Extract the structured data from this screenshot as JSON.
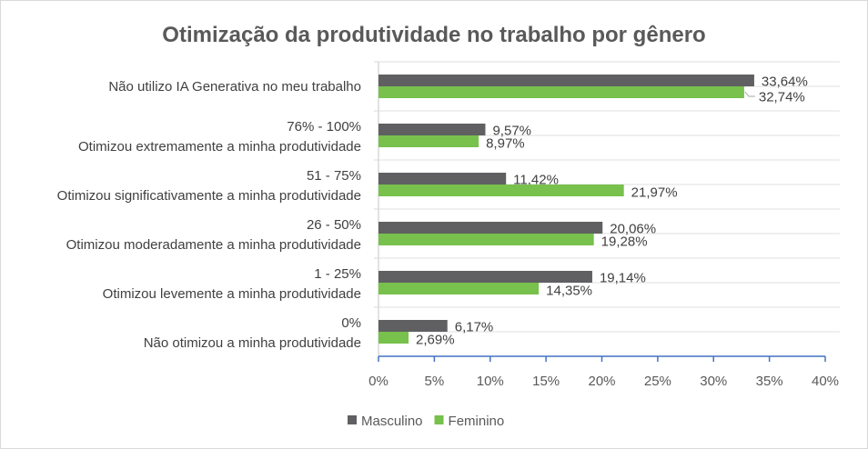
{
  "chart_data": {
    "type": "bar",
    "orientation": "horizontal",
    "title": "Otimização da produtividade no trabalho por gênero",
    "categories": [
      [
        "Não utilizo IA Generativa no meu trabalho"
      ],
      [
        "76% - 100%",
        "Otimizou extremamente a minha produtividade"
      ],
      [
        "51 - 75%",
        "Otimizou significativamente a minha produtividade"
      ],
      [
        "26 - 50%",
        "Otimizou moderadamente a minha produtividade"
      ],
      [
        "1 - 25%",
        "Otimizou levemente a minha produtividade"
      ],
      [
        "0%",
        "Não otimizou a minha produtividade"
      ]
    ],
    "series": [
      {
        "name": "Masculino",
        "color": "#606062",
        "values": [
          33.64,
          9.57,
          11.42,
          20.06,
          19.14,
          6.17
        ],
        "labels": [
          "33,64%",
          "9,57%",
          "11,42%",
          "20,06%",
          "19,14%",
          "6,17%"
        ]
      },
      {
        "name": "Feminino",
        "color": "#77c14c",
        "values": [
          32.74,
          8.97,
          21.97,
          19.28,
          14.35,
          2.69
        ],
        "labels": [
          "32,74%",
          "8,97%",
          "21,97%",
          "19,28%",
          "14,35%",
          "2,69%"
        ]
      }
    ],
    "xlim": [
      0,
      40
    ],
    "xticks": [
      "0%",
      "5%",
      "10%",
      "15%",
      "20%",
      "25%",
      "30%",
      "35%",
      "40%"
    ],
    "grid": true,
    "legend_position": "bottom"
  }
}
